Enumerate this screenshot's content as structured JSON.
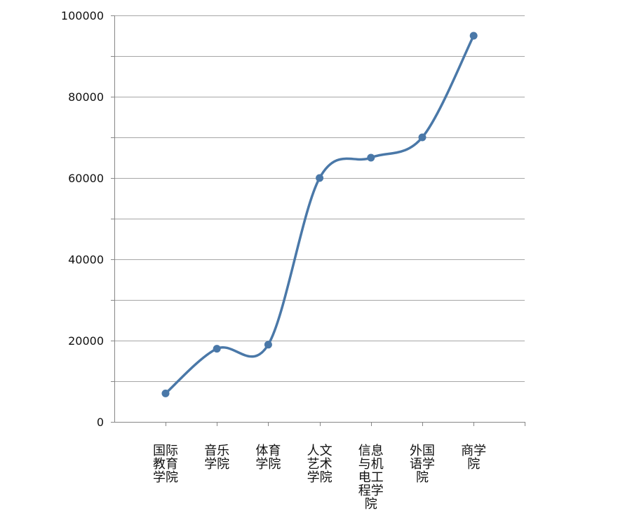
{
  "chart_data": {
    "type": "line",
    "smooth": true,
    "title": "",
    "xlabel": "",
    "ylabel": "",
    "categories": [
      "国际教育学院",
      "音乐学院",
      "体育学院",
      "人文艺术学院",
      "信息与机电工程学院",
      "外国语学院",
      "商学院"
    ],
    "category_label_lines": [
      [
        "国际",
        "教育",
        "学院"
      ],
      [
        "音乐",
        "学院"
      ],
      [
        "体育",
        "学院"
      ],
      [
        "人文",
        "艺术",
        "学院"
      ],
      [
        "信息",
        "与机",
        "电工",
        "程学",
        "院"
      ],
      [
        "外国",
        "语学",
        "院"
      ],
      [
        "商学",
        "院"
      ]
    ],
    "series": [
      {
        "values": [
          7000,
          18000,
          19000,
          60000,
          65000,
          70000,
          95000
        ],
        "color": "#4a78a8"
      }
    ],
    "ylim": [
      0,
      100000
    ],
    "y_major_ticks": [
      0,
      20000,
      40000,
      60000,
      80000,
      100000
    ],
    "y_minor_ticks": [
      10000,
      30000,
      50000,
      70000,
      90000
    ],
    "y_tick_labels": [
      "0",
      "20000",
      "40000",
      "60000",
      "80000",
      "100000"
    ],
    "gridlines": true,
    "legend": "none",
    "colors": {
      "series": "#4a78a8",
      "grid": "#a6a6a6",
      "axis": "#868686",
      "text": "#111111"
    }
  }
}
